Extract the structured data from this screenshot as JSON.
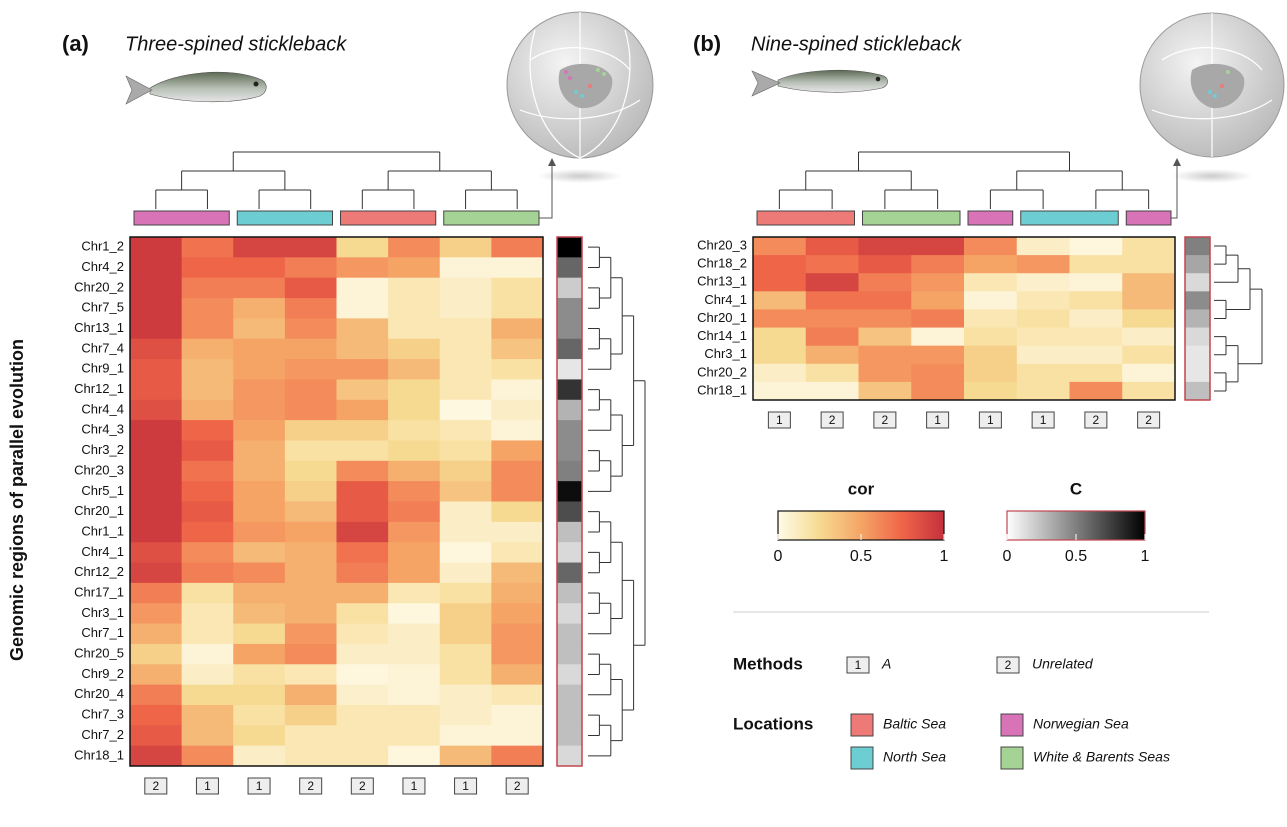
{
  "chart_data": [
    {
      "type": "heatmap",
      "panel_label": "(a)",
      "title": "Three-spined stickleback",
      "y_label": "Genomic regions of parallel evolution",
      "rows": [
        "Chr1_2",
        "Chr4_2",
        "Chr20_2",
        "Chr7_5",
        "Chr13_1",
        "Chr7_4",
        "Chr9_1",
        "Chr12_1",
        "Chr4_4",
        "Chr4_3",
        "Chr3_2",
        "Chr20_3",
        "Chr5_1",
        "Chr20_1",
        "Chr1_1",
        "Chr4_1",
        "Chr12_2",
        "Chr17_1",
        "Chr3_1",
        "Chr7_1",
        "Chr20_5",
        "Chr9_2",
        "Chr20_4",
        "Chr7_3",
        "Chr7_2",
        "Chr18_1"
      ],
      "column_locations": [
        "Norwegian Sea",
        "Norwegian Sea",
        "North Sea",
        "North Sea",
        "Baltic Sea",
        "Baltic Sea",
        "White & Barents Seas",
        "White & Barents Seas"
      ],
      "column_methods": [
        "2",
        "1",
        "1",
        "2",
        "2",
        "1",
        "1",
        "2"
      ],
      "values": [
        [
          0.95,
          0.7,
          0.9,
          0.9,
          0.25,
          0.6,
          0.3,
          0.65
        ],
        [
          0.95,
          0.75,
          0.75,
          0.65,
          0.55,
          0.5,
          0.05,
          0.05
        ],
        [
          0.95,
          0.65,
          0.65,
          0.8,
          0.05,
          0.15,
          0.1,
          0.2
        ],
        [
          0.95,
          0.6,
          0.45,
          0.65,
          0.05,
          0.15,
          0.1,
          0.2
        ],
        [
          0.95,
          0.6,
          0.4,
          0.6,
          0.4,
          0.15,
          0.15,
          0.45
        ],
        [
          0.85,
          0.45,
          0.5,
          0.5,
          0.4,
          0.3,
          0.15,
          0.35
        ],
        [
          0.8,
          0.4,
          0.5,
          0.55,
          0.55,
          0.4,
          0.15,
          0.2
        ],
        [
          0.8,
          0.4,
          0.55,
          0.6,
          0.35,
          0.25,
          0.15,
          0.05
        ],
        [
          0.85,
          0.45,
          0.55,
          0.6,
          0.5,
          0.25,
          0.02,
          0.1
        ],
        [
          0.95,
          0.75,
          0.5,
          0.3,
          0.3,
          0.2,
          0.15,
          0.05
        ],
        [
          0.95,
          0.8,
          0.45,
          0.2,
          0.2,
          0.25,
          0.2,
          0.5
        ],
        [
          0.95,
          0.7,
          0.45,
          0.25,
          0.6,
          0.45,
          0.3,
          0.6
        ],
        [
          0.95,
          0.75,
          0.5,
          0.3,
          0.8,
          0.6,
          0.35,
          0.6
        ],
        [
          0.95,
          0.8,
          0.5,
          0.4,
          0.8,
          0.65,
          0.1,
          0.25
        ],
        [
          0.95,
          0.75,
          0.55,
          0.5,
          0.9,
          0.55,
          0.1,
          0.1
        ],
        [
          0.85,
          0.6,
          0.4,
          0.45,
          0.7,
          0.5,
          0.03,
          0.15
        ],
        [
          0.9,
          0.65,
          0.6,
          0.45,
          0.65,
          0.5,
          0.1,
          0.4
        ],
        [
          0.65,
          0.2,
          0.45,
          0.45,
          0.45,
          0.15,
          0.2,
          0.45
        ],
        [
          0.55,
          0.15,
          0.4,
          0.45,
          0.2,
          0.03,
          0.3,
          0.5
        ],
        [
          0.45,
          0.15,
          0.25,
          0.55,
          0.15,
          0.1,
          0.3,
          0.55
        ],
        [
          0.3,
          0.05,
          0.5,
          0.6,
          0.1,
          0.1,
          0.2,
          0.55
        ],
        [
          0.45,
          0.1,
          0.2,
          0.15,
          0.03,
          0.05,
          0.2,
          0.45
        ],
        [
          0.65,
          0.25,
          0.25,
          0.45,
          0.08,
          0.05,
          0.1,
          0.15
        ],
        [
          0.75,
          0.4,
          0.2,
          0.3,
          0.15,
          0.15,
          0.1,
          0.05
        ],
        [
          0.8,
          0.4,
          0.25,
          0.15,
          0.15,
          0.15,
          0.05,
          0.05
        ],
        [
          0.9,
          0.6,
          0.1,
          0.15,
          0.15,
          0.03,
          0.4,
          0.65
        ]
      ],
      "c_values": [
        1.0,
        0.6,
        0.2,
        0.45,
        0.45,
        0.6,
        0.1,
        0.8,
        0.3,
        0.45,
        0.45,
        0.5,
        0.95,
        0.7,
        0.25,
        0.15,
        0.6,
        0.25,
        0.15,
        0.25,
        0.25,
        0.15,
        0.25,
        0.25,
        0.25,
        0.15
      ]
    },
    {
      "type": "heatmap",
      "panel_label": "(b)",
      "title": "Nine-spined stickleback",
      "rows": [
        "Chr20_3",
        "Chr18_2",
        "Chr13_1",
        "Chr4_1",
        "Chr20_1",
        "Chr14_1",
        "Chr3_1",
        "Chr20_2",
        "Chr18_1"
      ],
      "column_locations": [
        "Baltic Sea",
        "Baltic Sea",
        "White & Barents Seas",
        "White & Barents Seas",
        "Norwegian Sea",
        "North Sea",
        "North Sea",
        "Norwegian Sea"
      ],
      "column_methods": [
        "1",
        "2",
        "2",
        "1",
        "1",
        "1",
        "2",
        "2"
      ],
      "values": [
        [
          0.6,
          0.8,
          0.9,
          0.9,
          0.6,
          0.1,
          0.03,
          0.2
        ],
        [
          0.75,
          0.7,
          0.8,
          0.65,
          0.5,
          0.55,
          0.2,
          0.2
        ],
        [
          0.75,
          0.9,
          0.65,
          0.55,
          0.15,
          0.08,
          0.05,
          0.4
        ],
        [
          0.4,
          0.7,
          0.7,
          0.5,
          0.05,
          0.15,
          0.2,
          0.4
        ],
        [
          0.6,
          0.6,
          0.6,
          0.65,
          0.15,
          0.2,
          0.1,
          0.25
        ],
        [
          0.25,
          0.65,
          0.35,
          0.05,
          0.2,
          0.15,
          0.15,
          0.1
        ],
        [
          0.25,
          0.45,
          0.55,
          0.55,
          0.3,
          0.1,
          0.1,
          0.2
        ],
        [
          0.1,
          0.2,
          0.55,
          0.6,
          0.3,
          0.2,
          0.2,
          0.05
        ],
        [
          0.05,
          0.05,
          0.35,
          0.6,
          0.25,
          0.2,
          0.6,
          0.2
        ]
      ],
      "c_values": [
        0.5,
        0.35,
        0.15,
        0.45,
        0.3,
        0.15,
        0.1,
        0.1,
        0.25
      ]
    }
  ],
  "legend": {
    "cor_title": "cor",
    "c_title": "C",
    "ticks": [
      0,
      0.5,
      1
    ],
    "cor_colors": [
      "#fffbe8",
      "#f6da92",
      "#f5a466",
      "#ef6548",
      "#c4303d"
    ],
    "c_colors": [
      "#ffffff",
      "#000000"
    ],
    "methods_title": "Methods",
    "methods": [
      {
        "code": "1",
        "label": "A"
      },
      {
        "code": "2",
        "label": "Unrelated"
      }
    ],
    "locations_title": "Locations",
    "locations": [
      {
        "name": "Baltic Sea",
        "color": "#ee7a78"
      },
      {
        "name": "Norwegian Sea",
        "color": "#d873b8"
      },
      {
        "name": "North Sea",
        "color": "#6ccdd3"
      },
      {
        "name": "White & Barents Seas",
        "color": "#a5d395"
      }
    ]
  }
}
